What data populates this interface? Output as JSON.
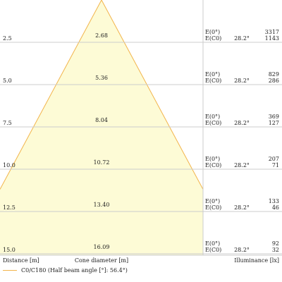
{
  "chart_data": {
    "type": "area",
    "title": "",
    "xlabel": "Distance [m]",
    "clabel": "Cone diameter [m]",
    "ylabel": "Illuminance [lx]",
    "legend": {
      "label": "C0/C180 (Half beam angle [°]: 56.4°)",
      "color": "#f2b44b"
    },
    "colors": {
      "fill": "#fdfbd6",
      "stroke": "#f2b44b",
      "grid": "#cccccc"
    },
    "half_angle_label": "28.2°",
    "row_labels": {
      "top": "E(0°)",
      "bottom": "E(C0)"
    },
    "rows": [
      {
        "distance": "2.5",
        "diameter": "2.68",
        "e0": "3317",
        "ec0": "1143"
      },
      {
        "distance": "5.0",
        "diameter": "5.36",
        "e0": "829",
        "ec0": "286"
      },
      {
        "distance": "7.5",
        "diameter": "8.04",
        "e0": "369",
        "ec0": "127"
      },
      {
        "distance": "10.0",
        "diameter": "10.72",
        "e0": "207",
        "ec0": "71"
      },
      {
        "distance": "12.5",
        "diameter": "13.40",
        "e0": "133",
        "ec0": "46"
      },
      {
        "distance": "15.0",
        "diameter": "16.09",
        "e0": "92",
        "ec0": "32"
      }
    ]
  }
}
